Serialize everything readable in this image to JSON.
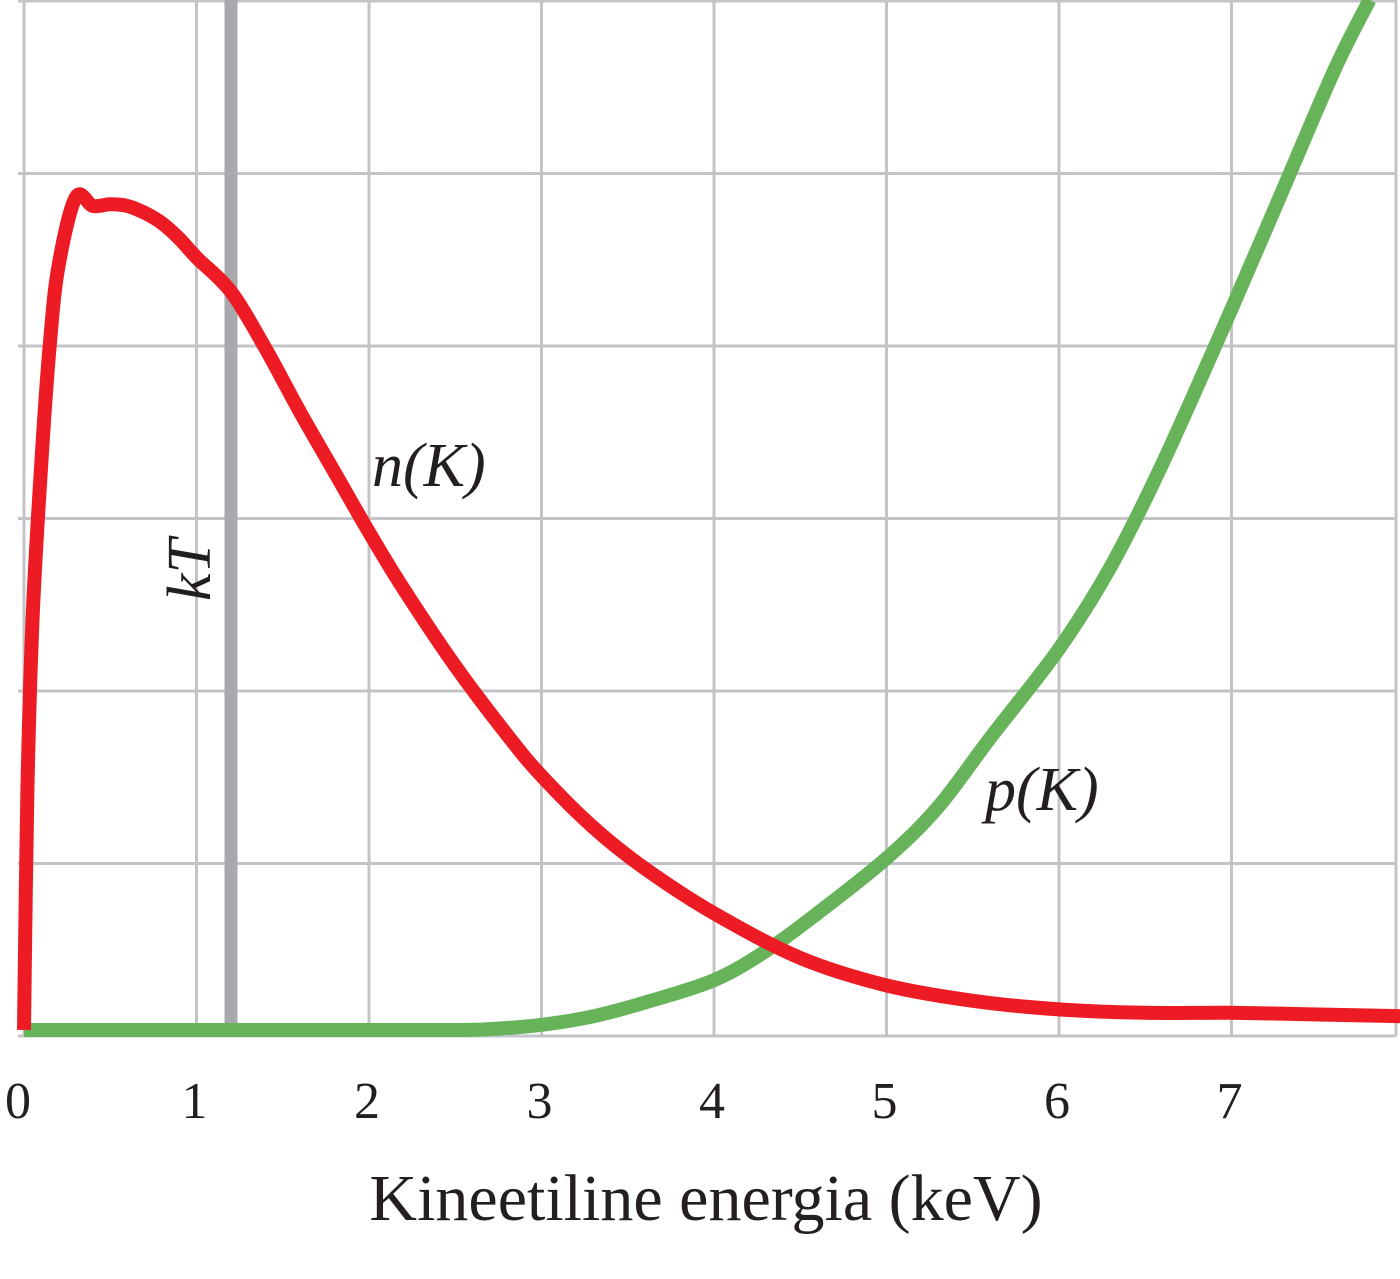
{
  "chart_data": {
    "type": "line",
    "title": "",
    "xlabel": "Kineetiline energia (keV)",
    "ylabel": "",
    "xlim": [
      0,
      8
    ],
    "ylim": [
      0,
      6
    ],
    "x_ticks": [
      "0",
      "1",
      "2",
      "3",
      "4",
      "5",
      "6",
      "7"
    ],
    "grid": true,
    "reference_line": {
      "label": "kT",
      "x": 1.2,
      "color": "#a7a9ac"
    },
    "series": [
      {
        "name": "n(K)",
        "label_base": "n",
        "label_arg": "(K)",
        "color": "#ed1c24",
        "x": [
          0,
          0.02,
          0.05,
          0.1,
          0.15,
          0.2,
          0.3,
          0.4,
          0.5,
          0.6,
          0.7,
          0.8,
          0.9,
          1.0,
          1.2,
          1.4,
          1.6,
          1.8,
          2.0,
          2.2,
          2.5,
          2.8,
          3.0,
          3.3,
          3.6,
          4.0,
          4.5,
          5.0,
          5.5,
          6.0,
          6.5,
          7.0,
          7.5,
          8.0
        ],
        "y": [
          0,
          1.4,
          2.4,
          3.3,
          4.0,
          4.45,
          4.85,
          4.8,
          4.81,
          4.8,
          4.76,
          4.7,
          4.61,
          4.5,
          4.3,
          3.97,
          3.6,
          3.25,
          2.9,
          2.57,
          2.12,
          1.72,
          1.48,
          1.18,
          0.94,
          0.68,
          0.42,
          0.26,
          0.17,
          0.12,
          0.1,
          0.1,
          0.09,
          0.08
        ]
      },
      {
        "name": "p(K)",
        "label_base": "p",
        "label_arg": "(K)",
        "color": "#66b35a",
        "x": [
          0,
          0.5,
          1.0,
          1.5,
          2.0,
          2.5,
          2.7,
          3.0,
          3.3,
          3.6,
          4.0,
          4.3,
          4.6,
          5.0,
          5.3,
          5.6,
          6.0,
          6.3,
          6.6,
          7.0,
          7.3,
          7.6,
          7.8
        ],
        "y": [
          0,
          0,
          0,
          0,
          0,
          0,
          0.005,
          0.03,
          0.08,
          0.16,
          0.29,
          0.46,
          0.68,
          1.0,
          1.3,
          1.7,
          2.22,
          2.7,
          3.3,
          4.2,
          4.9,
          5.6,
          6.0
        ]
      }
    ]
  }
}
